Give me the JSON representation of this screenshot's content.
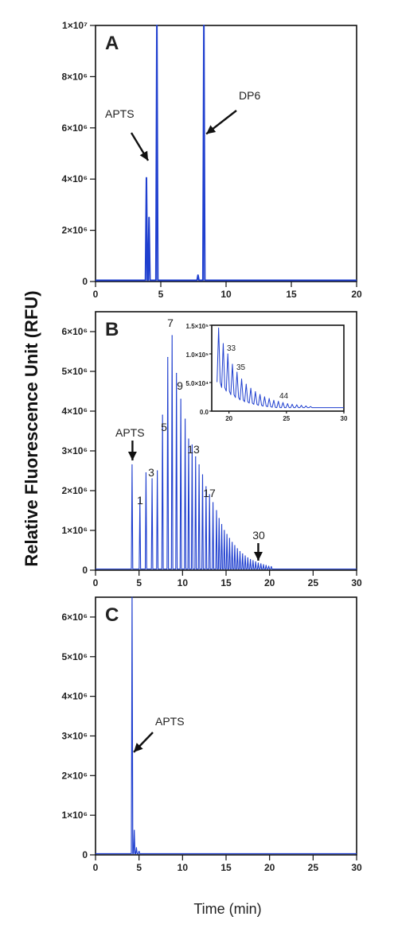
{
  "figure": {
    "ylabel": "Relative Fluorescence Unit (RFU)",
    "xlabel": "Time (min)"
  },
  "chart_data": [
    {
      "panel": "A",
      "type": "line",
      "color": "#1f3fcf",
      "xlim": [
        0,
        20
      ],
      "ylim": [
        0,
        10000000
      ],
      "xticks": [
        0,
        5,
        10,
        15,
        20
      ],
      "yticks": [
        0,
        2000000,
        4000000,
        6000000,
        8000000,
        10000000
      ],
      "ytick_labels": [
        "0",
        "2×10⁶",
        "4×10⁶",
        "6×10⁶",
        "8×10⁶",
        "1×10⁷"
      ],
      "peaks": [
        {
          "x": 3.9,
          "y": 4050000
        },
        {
          "x": 4.1,
          "y": 2500000
        },
        {
          "x": 4.7,
          "y": 10000000
        },
        {
          "x": 7.85,
          "y": 250000
        },
        {
          "x": 8.3,
          "y": 10000000
        }
      ],
      "annotations": [
        {
          "text": "APTS",
          "x": 4.15,
          "y": 4600000
        },
        {
          "text": "DP6",
          "x": 8.3,
          "y": 5700000
        }
      ]
    },
    {
      "panel": "B",
      "type": "line",
      "color": "#1f3fcf",
      "xlim": [
        0,
        30
      ],
      "ylim": [
        0,
        6500000
      ],
      "xticks": [
        0,
        5,
        10,
        15,
        20,
        25,
        30
      ],
      "yticks": [
        0,
        1000000,
        2000000,
        3000000,
        4000000,
        5000000,
        6000000
      ],
      "ytick_labels": [
        "0",
        "1×10⁶",
        "2×10⁶",
        "3×10⁶",
        "4×10⁶",
        "5×10⁶",
        "6×10⁶"
      ],
      "apts_peak": {
        "x": 4.2,
        "y": 2650000
      },
      "dp_peaks": {
        "x": [
          5.1,
          5.8,
          6.5,
          7.1,
          7.7,
          8.3,
          8.8,
          9.3,
          9.8,
          10.3,
          10.7,
          11.1,
          11.5,
          11.9,
          12.3,
          12.7,
          13.1,
          13.5,
          13.9,
          14.2,
          14.5,
          14.8,
          15.1,
          15.4,
          15.7,
          16.0,
          16.3,
          16.6,
          16.9,
          17.2,
          17.5,
          17.8,
          18.1,
          18.4,
          18.7,
          19.0,
          19.3,
          19.6,
          19.9,
          20.2
        ],
        "y": [
          1800000,
          2450000,
          2300000,
          2500000,
          3900000,
          5350000,
          5900000,
          4950000,
          4300000,
          3800000,
          3300000,
          3150000,
          2850000,
          2650000,
          2400000,
          2100000,
          1900000,
          1700000,
          1500000,
          1300000,
          1150000,
          1000000,
          900000,
          800000,
          700000,
          620000,
          540000,
          470000,
          410000,
          360000,
          310000,
          270000,
          240000,
          210000,
          180000,
          160000,
          140000,
          120000,
          100000,
          90000
        ]
      },
      "annotations": [
        {
          "text": "APTS",
          "x": 4.2,
          "y": 2650000
        },
        {
          "text": "1",
          "x": 5.1,
          "y": 1800000
        },
        {
          "text": "3",
          "x": 6.5,
          "y": 2300000
        },
        {
          "text": "5",
          "x": 8.3,
          "y": 3900000
        },
        {
          "text": "7",
          "x": 8.8,
          "y": 5900000
        },
        {
          "text": "9",
          "x": 9.8,
          "y": 4300000
        },
        {
          "text": "13",
          "x": 11.9,
          "y": 2650000
        },
        {
          "text": "17",
          "x": 13.9,
          "y": 1500000
        },
        {
          "text": "30",
          "x": 18.7,
          "y": 180000
        }
      ],
      "inset": {
        "xlim": [
          18.5,
          30
        ],
        "ylim": [
          0,
          150000
        ],
        "xticks": [
          20,
          25,
          30
        ],
        "yticks": [
          0,
          50000,
          100000,
          150000
        ],
        "ytick_labels": [
          "0.0",
          "5.0×10⁴",
          "1.0×10⁵",
          "1.5×10⁵"
        ],
        "peaks": {
          "x": [
            19.1,
            19.5,
            19.9,
            20.3,
            20.7,
            21.1,
            21.5,
            21.9,
            22.3,
            22.7,
            23.1,
            23.5,
            23.9,
            24.3,
            24.7,
            25.1,
            25.5,
            25.9,
            26.3,
            26.7,
            27.1
          ],
          "y": [
            145000,
            118000,
            100000,
            82000,
            68000,
            56000,
            47000,
            40000,
            34000,
            29000,
            25000,
            22000,
            19000,
            17000,
            15000,
            13000,
            12000,
            11000,
            10000,
            9000,
            8000
          ]
        },
        "annotations": [
          {
            "text": "33",
            "x": 20.1,
            "y": 100000
          },
          {
            "text": "35",
            "x": 21.0,
            "y": 68000
          },
          {
            "text": "44",
            "x": 24.6,
            "y": 15000
          }
        ]
      }
    },
    {
      "panel": "C",
      "type": "line",
      "color": "#1f3fcf",
      "xlim": [
        0,
        30
      ],
      "ylim": [
        0,
        6500000
      ],
      "xticks": [
        0,
        5,
        10,
        15,
        20,
        25,
        30
      ],
      "yticks": [
        0,
        1000000,
        2000000,
        3000000,
        4000000,
        5000000,
        6000000
      ],
      "ytick_labels": [
        "0",
        "1×10⁶",
        "2×10⁶",
        "3×10⁶",
        "4×10⁶",
        "5×10⁶",
        "6×10⁶"
      ],
      "peaks": [
        {
          "x": 4.2,
          "y": 6500000
        },
        {
          "x": 4.45,
          "y": 620000
        },
        {
          "x": 4.7,
          "y": 180000
        },
        {
          "x": 5.0,
          "y": 90000
        }
      ],
      "annotations": [
        {
          "text": "APTS",
          "x": 4.3,
          "y": 2550000
        }
      ]
    }
  ]
}
